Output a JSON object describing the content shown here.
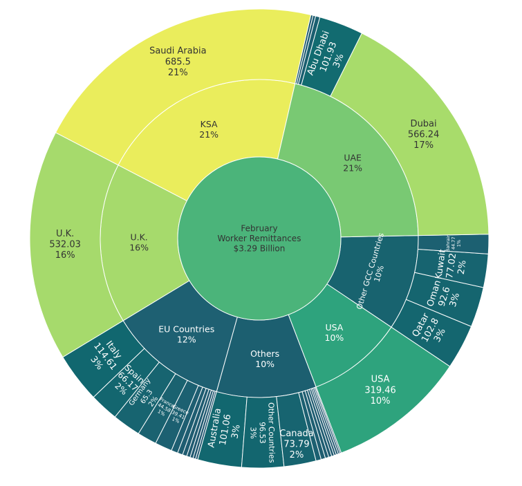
{
  "chart_data": {
    "type": "sunburst",
    "title": "",
    "root": {
      "lines": [
        "February",
        "Worker Remittances",
        "$3.29 Billion"
      ],
      "color": "#4bb47a"
    },
    "unit": "USD million",
    "groups": [
      {
        "name": "KSA",
        "pct": "21%",
        "color": "#eaed5c",
        "children": [
          {
            "name": "Saudi Arabia",
            "value": 685.5,
            "pct": "21%",
            "color": "#eaed5c"
          }
        ]
      },
      {
        "name": "U.K.",
        "pct": "16%",
        "color": "#a6da6c",
        "children": [
          {
            "name": "U.K.",
            "value": 532.03,
            "pct": "16%",
            "color": "#a6da6c"
          }
        ]
      },
      {
        "name": "EU Countries",
        "pct": "12%",
        "color": "#1e6072",
        "children": [
          {
            "name": "Italy",
            "value": 114.61,
            "pct": "3%",
            "color": "#11676f"
          },
          {
            "name": "Spain",
            "value": 66.17,
            "pct": "2%",
            "color": "#13666f"
          },
          {
            "name": "Germany",
            "value": 65.3,
            "pct": "2%",
            "color": "#176470"
          },
          {
            "name": "France",
            "value": 44.58,
            "pct": "1%",
            "color": "#1a6270"
          },
          {
            "name": "Greece",
            "value": 39.41,
            "pct": "1%",
            "color": "#1c6071"
          },
          {
            "value": 15,
            "color": "#1e5e71"
          },
          {
            "value": 12,
            "color": "#1f5d71"
          },
          {
            "value": 10,
            "color": "#205c71"
          },
          {
            "value": 8,
            "color": "#215b71"
          },
          {
            "value": 7,
            "color": "#225a71"
          },
          {
            "value": 6,
            "color": "#235971"
          },
          {
            "value": 5,
            "color": "#245871"
          }
        ]
      },
      {
        "name": "Others",
        "pct": "10%",
        "color": "#1c5f70",
        "children": [
          {
            "name": "Australia",
            "value": 101.06,
            "pct": "3%",
            "color": "#12676f"
          },
          {
            "name": "Other Countries",
            "value": 96.53,
            "pct": "3%",
            "color": "#13666f"
          },
          {
            "name": "Canada",
            "value": 73.79,
            "pct": "2%",
            "color": "#176470"
          },
          {
            "value": 12,
            "color": "#1c6071"
          },
          {
            "value": 10,
            "color": "#1e5e71"
          },
          {
            "value": 8,
            "color": "#1f5d71"
          },
          {
            "value": 7,
            "color": "#205c71"
          },
          {
            "value": 6,
            "color": "#215b71"
          },
          {
            "value": 5,
            "color": "#225a71"
          },
          {
            "value": 5,
            "color": "#235971"
          },
          {
            "value": 4,
            "color": "#245871"
          },
          {
            "value": 3,
            "color": "#255771"
          }
        ]
      },
      {
        "name": "USA",
        "pct": "10%",
        "color": "#2ea37d",
        "children": [
          {
            "name": "USA",
            "value": 319.46,
            "pct": "10%",
            "color": "#2ea37d"
          }
        ]
      },
      {
        "name": "Other GCC Countries",
        "pct": "10%",
        "color": "#18636f",
        "children": [
          {
            "name": "Qatar",
            "value": 102.8,
            "pct": "3%",
            "color": "#14666f"
          },
          {
            "name": "Oman",
            "value": 92.6,
            "pct": "3%",
            "color": "#15656f"
          },
          {
            "name": "Kuwait",
            "value": 77.02,
            "pct": "2%",
            "color": "#176470"
          },
          {
            "name": "Bahrain",
            "value": 44.77,
            "pct": "1%",
            "color": "#1c6071"
          }
        ]
      },
      {
        "name": "UAE",
        "pct": "21%",
        "color": "#79c973",
        "children": [
          {
            "name": "Dubai",
            "value": 566.24,
            "pct": "17%",
            "color": "#a8dc6b"
          },
          {
            "name": "Abu Dhabi",
            "value": 101.93,
            "pct": "3%",
            "color": "#126b70"
          },
          {
            "value": 10,
            "color": "#1a5f70"
          },
          {
            "value": 6,
            "color": "#1d5c70"
          },
          {
            "value": 5,
            "color": "#205a70"
          }
        ]
      }
    ]
  }
}
